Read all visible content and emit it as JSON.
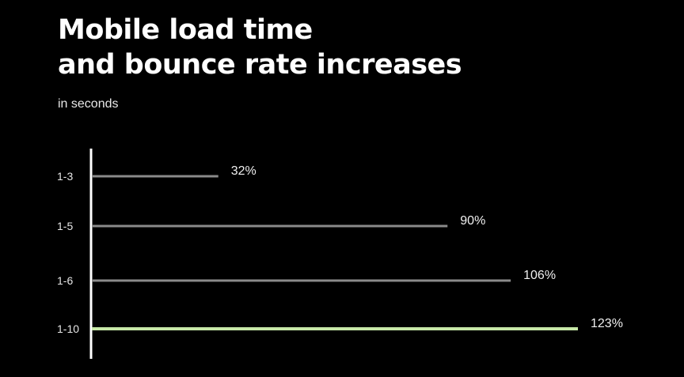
{
  "chart_data": {
    "type": "bar",
    "orientation": "horizontal",
    "title_lines": [
      "Mobile load time",
      "and bounce rate increases"
    ],
    "subtitle": "in seconds",
    "categories": [
      "1-3",
      "1-5",
      "1-6",
      "1-10"
    ],
    "values": [
      32,
      90,
      106,
      123
    ],
    "value_labels": [
      "32%",
      "90%",
      "106%",
      "123%"
    ],
    "unit": "%",
    "xlim": [
      0,
      123
    ],
    "grid": false,
    "legend": "none",
    "colors": {
      "background": "#000000",
      "axis": "#ffffff",
      "bar": "#8a8a8a",
      "highlight_bar": "#c7e8a8",
      "text": "#ffffff"
    },
    "highlight_index": 3
  }
}
